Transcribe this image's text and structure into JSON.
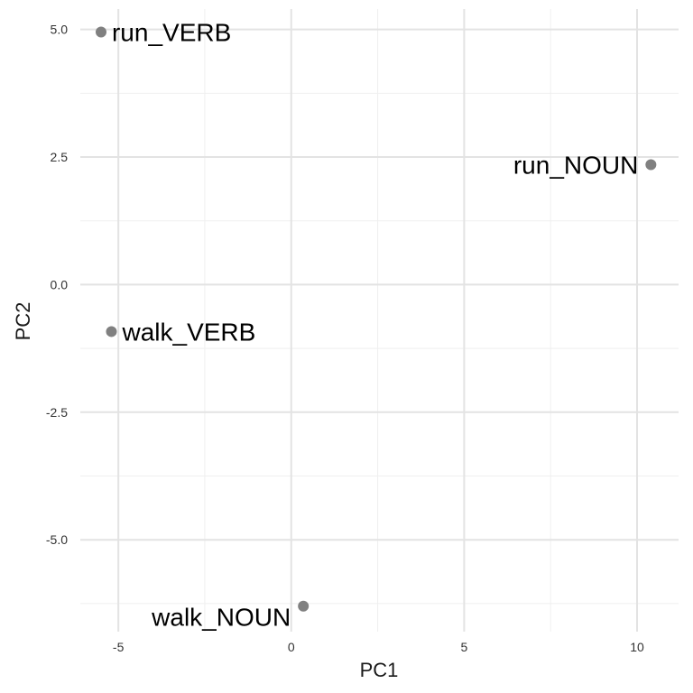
{
  "chart_data": {
    "type": "scatter",
    "title": "",
    "xlabel": "PC1",
    "ylabel": "PC2",
    "xlim": [
      -6.1,
      11.2
    ],
    "ylim": [
      -6.8,
      5.4
    ],
    "x_ticks": [
      -5,
      0,
      5,
      10
    ],
    "x_tick_labels": [
      "-5",
      "0",
      "5",
      "10"
    ],
    "y_ticks": [
      -5.0,
      -2.5,
      0.0,
      2.5,
      5.0
    ],
    "y_tick_labels": [
      "-5.0",
      "-2.5",
      "0.0",
      "2.5",
      "5.0"
    ],
    "grid": true,
    "legend": "none",
    "point_color": "#808080",
    "points": [
      {
        "label": "run_VERB",
        "x": -5.5,
        "y": 4.95,
        "label_side": "right"
      },
      {
        "label": "run_NOUN",
        "x": 10.4,
        "y": 2.35,
        "label_side": "left"
      },
      {
        "label": "walk_VERB",
        "x": -5.2,
        "y": -0.92,
        "label_side": "right"
      },
      {
        "label": "walk_NOUN",
        "x": 0.35,
        "y": -6.3,
        "label_side": "below-left"
      }
    ]
  }
}
